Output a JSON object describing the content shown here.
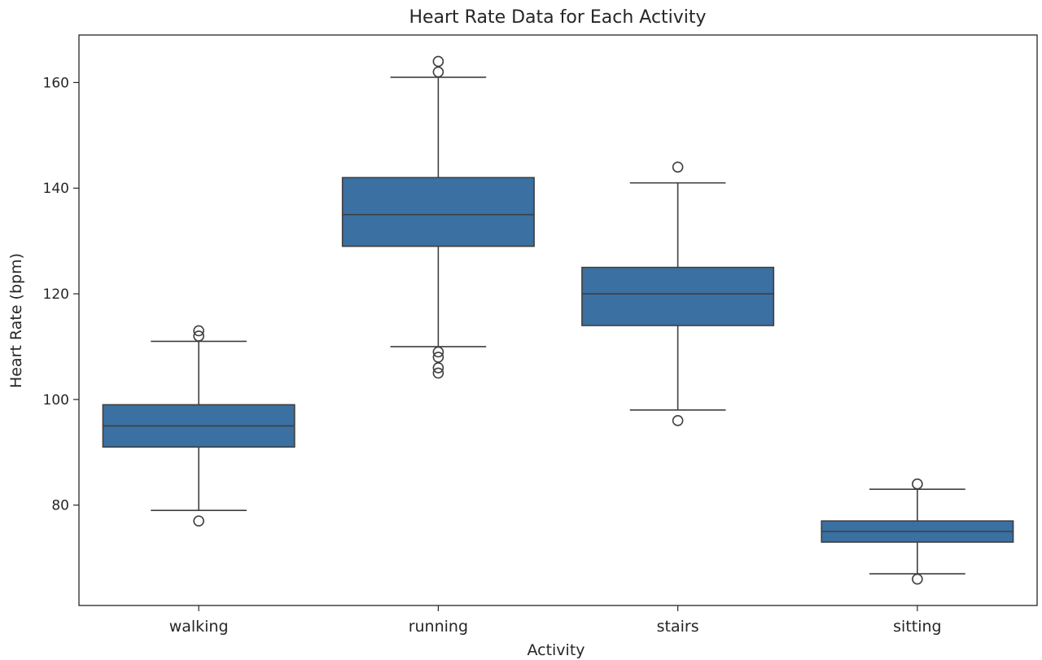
{
  "chart_data": {
    "type": "box",
    "title": "Heart Rate Data for Each Activity",
    "xlabel": "Activity",
    "ylabel": "Heart Rate (bpm)",
    "ylim": [
      61,
      169
    ],
    "yticks": [
      80,
      100,
      120,
      140,
      160
    ],
    "grid": false,
    "box_color": "#3a70a2",
    "categories": [
      "walking",
      "running",
      "stairs",
      "sitting"
    ],
    "boxes": [
      {
        "category": "walking",
        "whisker_low": 79,
        "q1": 91,
        "median": 95,
        "q3": 99,
        "whisker_high": 111,
        "outliers": [
          77,
          112,
          113
        ]
      },
      {
        "category": "running",
        "whisker_low": 110,
        "q1": 129,
        "median": 135,
        "q3": 142,
        "whisker_high": 161,
        "outliers": [
          105,
          106,
          108,
          109,
          162,
          164
        ]
      },
      {
        "category": "stairs",
        "whisker_low": 98,
        "q1": 114,
        "median": 120,
        "q3": 125,
        "whisker_high": 141,
        "outliers": [
          96,
          144
        ]
      },
      {
        "category": "sitting",
        "whisker_low": 67,
        "q1": 73,
        "median": 75,
        "q3": 77,
        "whisker_high": 83,
        "outliers": [
          66,
          84
        ]
      }
    ]
  }
}
